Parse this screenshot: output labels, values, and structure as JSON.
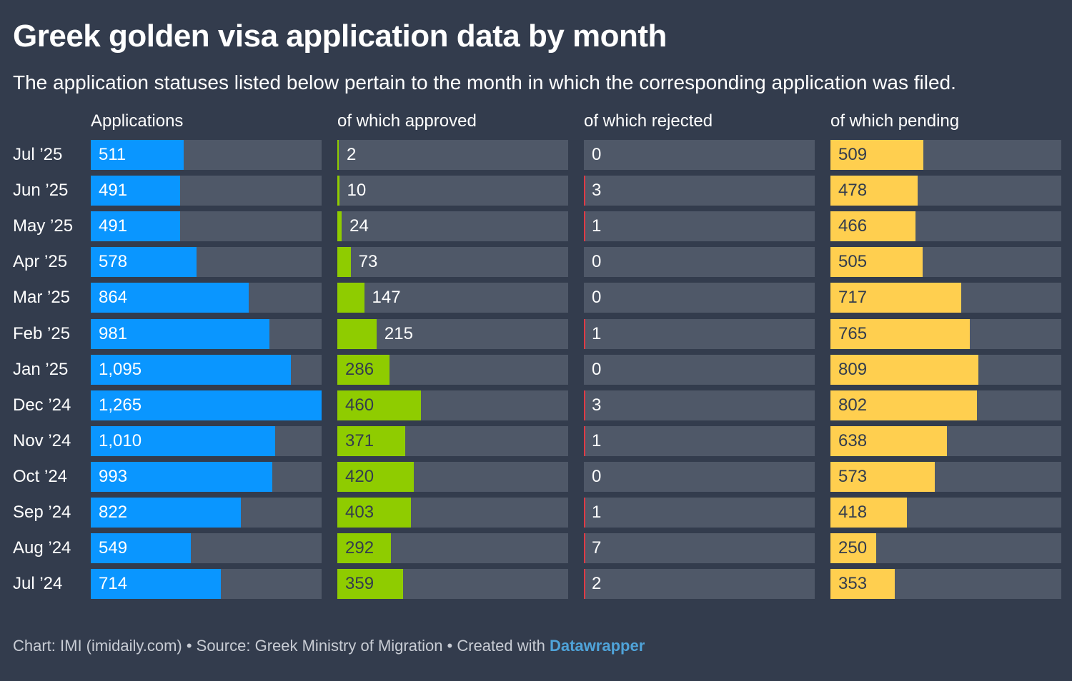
{
  "header": {
    "title": "Greek golden visa application data by month",
    "subtitle": "The application statuses listed below pertain to the month in which the corresponding application was filed."
  },
  "footer": {
    "credit": "Chart: IMI (imidaily.com) • Source: Greek Ministry of Migration • Created with ",
    "tool": "Datawrapper"
  },
  "colors": {
    "background": "#333c4d",
    "track": "#4f5868",
    "applications": "#0a96ff",
    "approved": "#8fcc00",
    "rejected": "#e03a45",
    "pending": "#ffcf4f"
  },
  "chart_data": {
    "type": "bar",
    "categories": [
      "Jul ’25",
      "Jun ’25",
      "May ’25",
      "Apr ’25",
      "Mar ’25",
      "Feb ’25",
      "Jan ’25",
      "Dec ’24",
      "Nov ’24",
      "Oct ’24",
      "Sep ’24",
      "Aug ’24",
      "Jul ’24"
    ],
    "series": [
      {
        "name": "Applications",
        "values": [
          "511",
          "491",
          "491",
          "578",
          "864",
          "981",
          "1,095",
          "1,265",
          "1,010",
          "993",
          "822",
          "549",
          "714"
        ]
      },
      {
        "name": "of which approved",
        "values": [
          "2",
          "10",
          "24",
          "73",
          "147",
          "215",
          "286",
          "460",
          "371",
          "420",
          "403",
          "292",
          "359"
        ]
      },
      {
        "name": "of which rejected",
        "values": [
          "0",
          "3",
          "1",
          "0",
          "0",
          "1",
          "0",
          "3",
          "1",
          "0",
          "1",
          "7",
          "2"
        ]
      },
      {
        "name": "of which pending",
        "values": [
          "509",
          "478",
          "466",
          "505",
          "717",
          "765",
          "809",
          "802",
          "638",
          "573",
          "418",
          "250",
          "353"
        ]
      }
    ],
    "xmax": 1265
  }
}
